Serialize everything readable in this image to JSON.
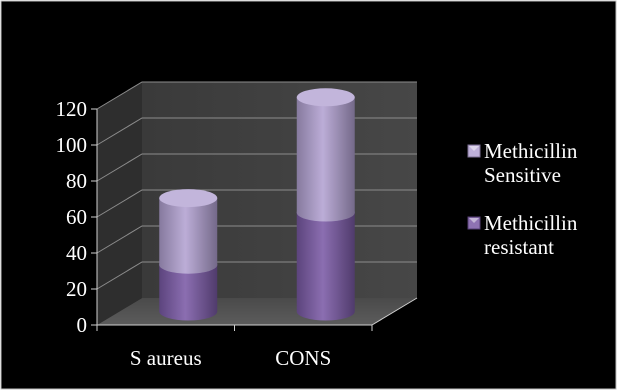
{
  "chart_data": {
    "type": "bar",
    "subtype": "stacked-3d-cylinder",
    "categories": [
      "S aureus",
      "CONS"
    ],
    "series": [
      {
        "name": "Methicillin resistant",
        "values": [
          26,
          55
        ],
        "color": "#7b5aa6"
      },
      {
        "name": "Methicillin Sensitive",
        "values": [
          37,
          64
        ],
        "color": "#b3a2d2"
      }
    ],
    "ylim": [
      0,
      120
    ],
    "yticks": [
      0,
      20,
      40,
      60,
      80,
      100,
      120
    ],
    "grid": true,
    "legend_position": "right",
    "background": "#000000",
    "wall_color": "#404040",
    "floor_color": "#555555"
  },
  "legend": {
    "items": [
      {
        "lines": [
          "Methicillin",
          "Sensitive"
        ],
        "series_index": 1
      },
      {
        "lines": [
          "Methicillin",
          "resistant"
        ],
        "series_index": 0
      }
    ]
  }
}
